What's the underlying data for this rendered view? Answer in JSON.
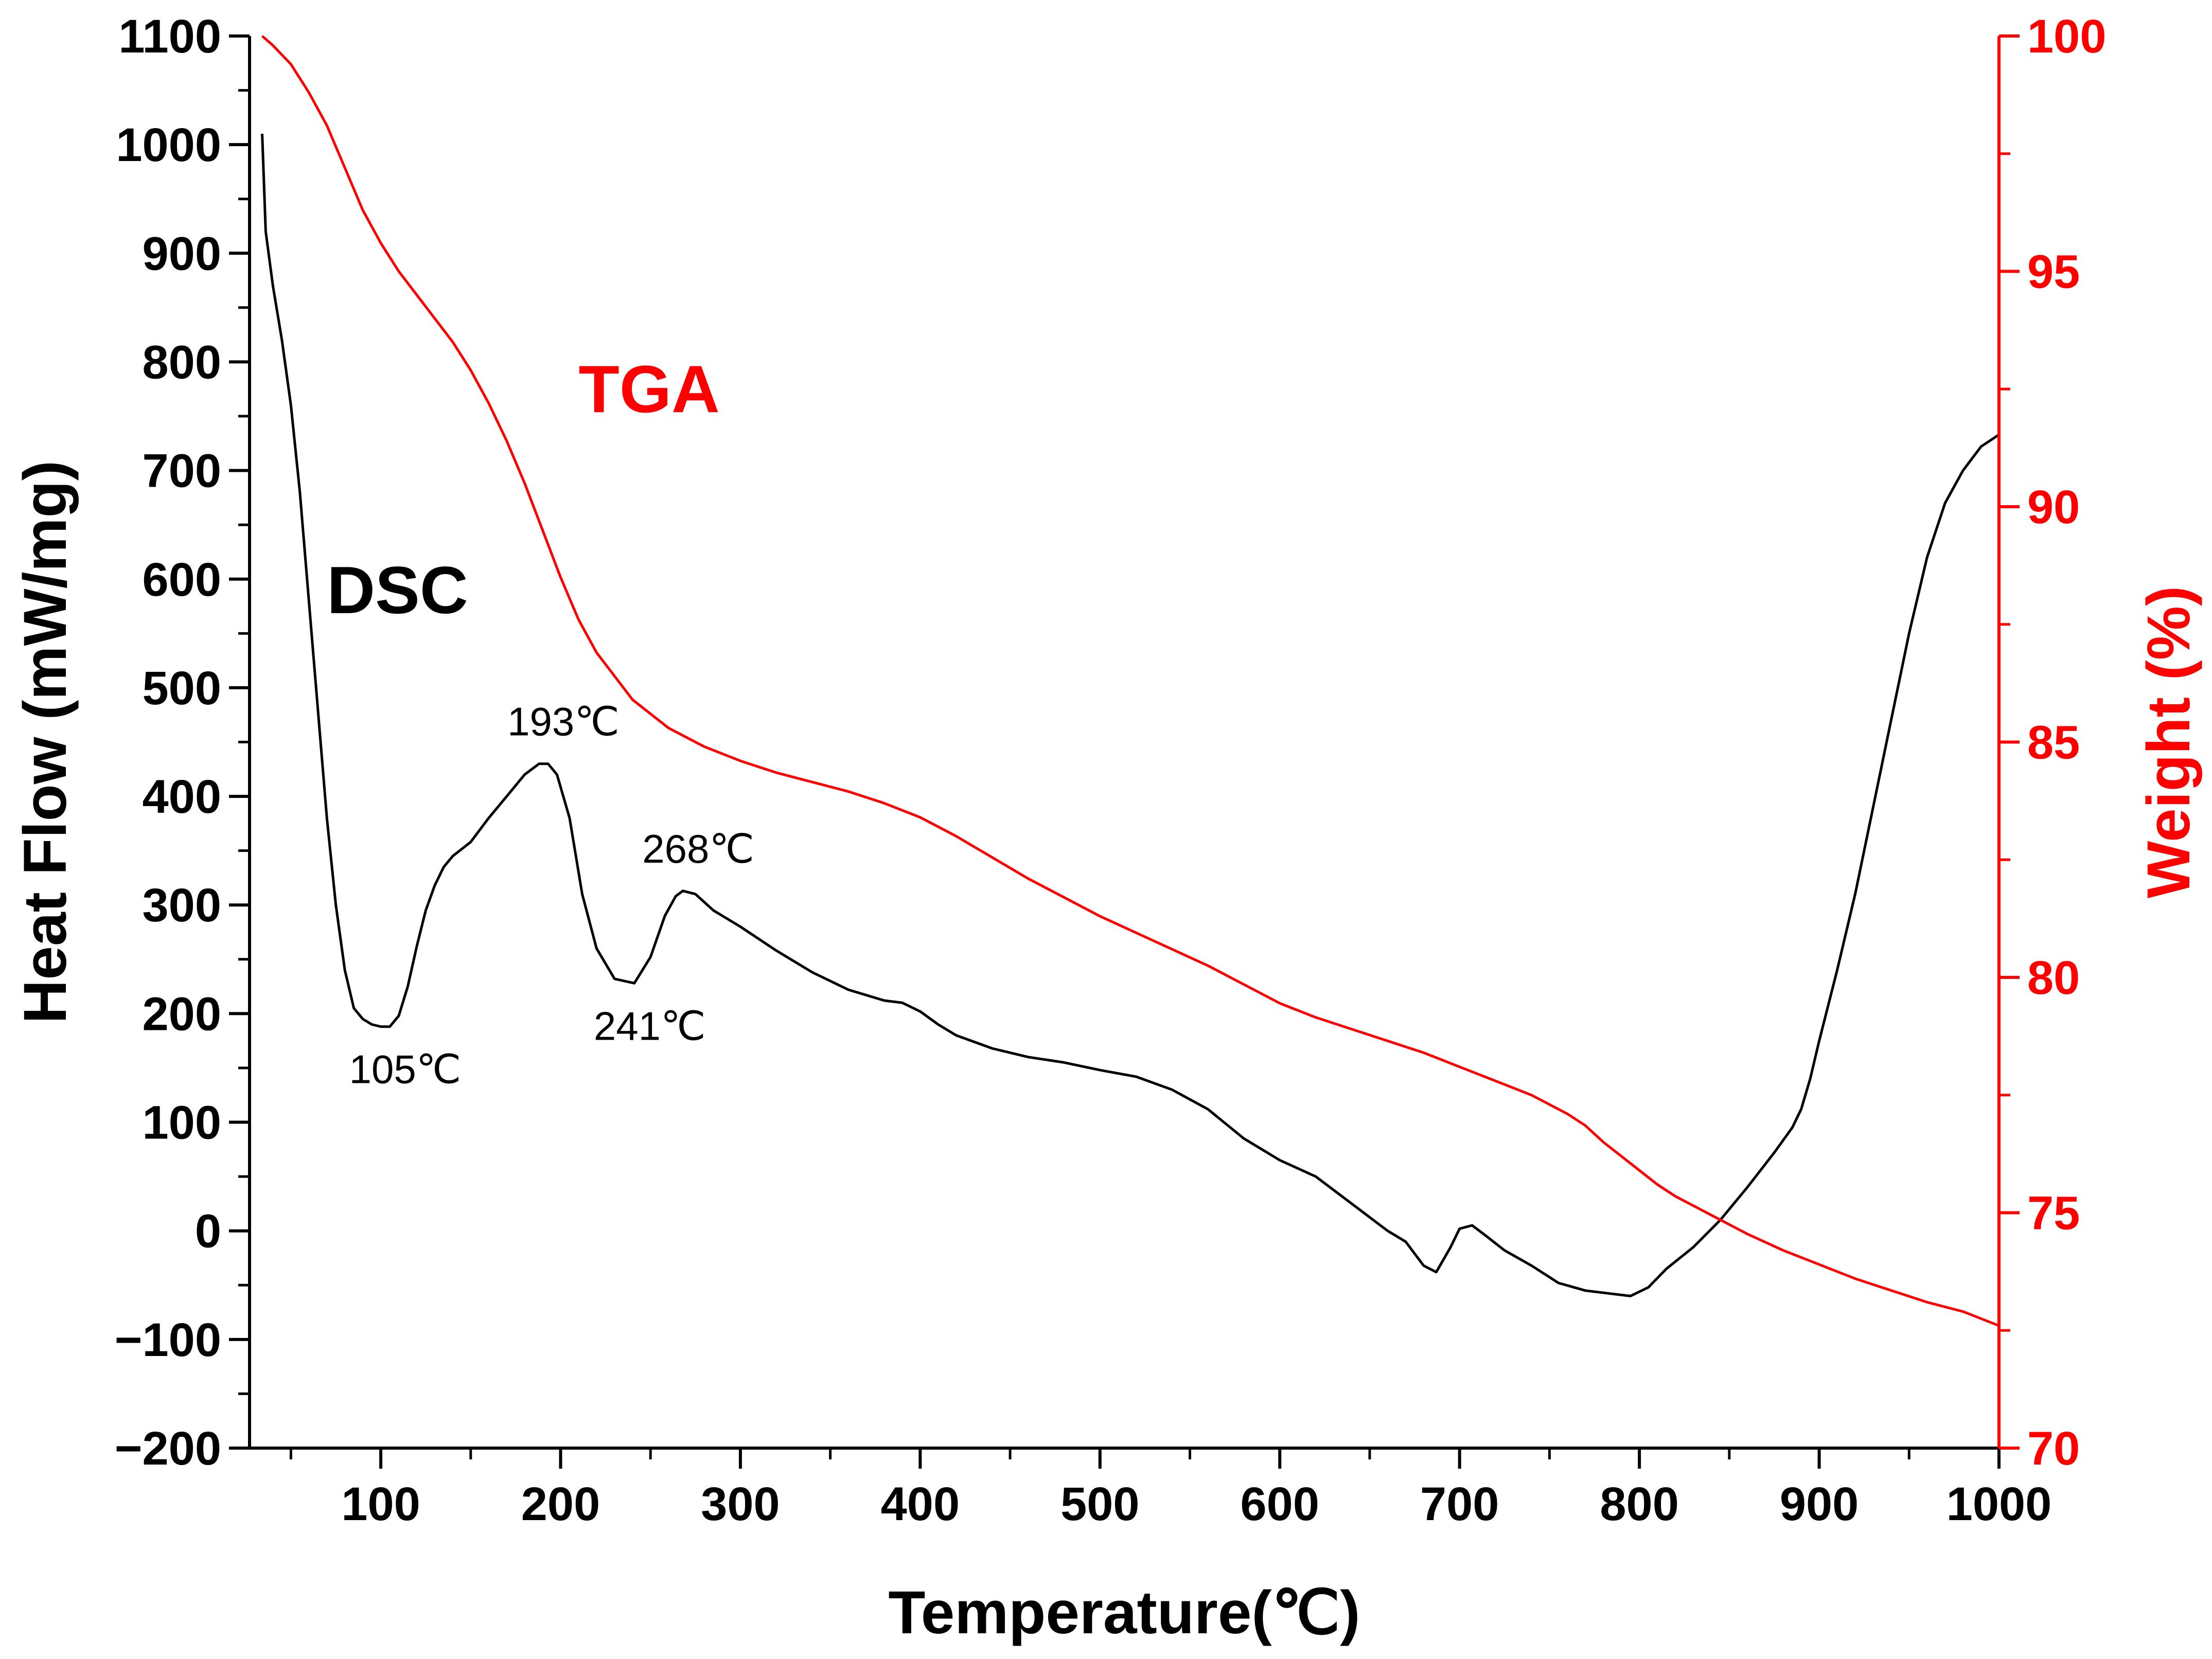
{
  "chart_data": {
    "type": "line",
    "title": "",
    "xlabel": "Temperature(℃)",
    "ylabel_left": "Heat Flow (mW/mg)",
    "ylabel_right": "Weight (%)",
    "xlim": [
      27,
      1000
    ],
    "ylim_left": [
      -200,
      1100
    ],
    "ylim_right": [
      70,
      100
    ],
    "x_ticks": [
      100,
      200,
      300,
      400,
      500,
      600,
      700,
      800,
      900,
      1000
    ],
    "y_left_ticks": [
      -200,
      -100,
      0,
      100,
      200,
      300,
      400,
      500,
      600,
      700,
      800,
      900,
      1000,
      1100
    ],
    "y_right_ticks": [
      70,
      75,
      80,
      85,
      90,
      95,
      100
    ],
    "x_tick_labels": [
      "100",
      "200",
      "300",
      "400",
      "500",
      "600",
      "700",
      "800",
      "900",
      "1000"
    ],
    "y_left_tick_labels": [
      "−200",
      "−100",
      "0",
      "100",
      "200",
      "300",
      "400",
      "500",
      "600",
      "700",
      "800",
      "900",
      "1000",
      "1100"
    ],
    "y_right_tick_labels": [
      "70",
      "75",
      "80",
      "85",
      "90",
      "95",
      "100"
    ],
    "grid": false,
    "colors": {
      "dsc": "#000000",
      "tga": "#ff0000"
    },
    "series": [
      {
        "name": "DSC",
        "axis": "left",
        "x": [
          34,
          36,
          40,
          45,
          50,
          55,
          60,
          65,
          70,
          75,
          80,
          85,
          90,
          95,
          100,
          105,
          110,
          115,
          120,
          125,
          130,
          135,
          140,
          150,
          160,
          170,
          180,
          188,
          193,
          198,
          205,
          212,
          220,
          230,
          241,
          250,
          258,
          264,
          268,
          275,
          285,
          300,
          320,
          340,
          360,
          380,
          390,
          400,
          410,
          420,
          440,
          460,
          480,
          500,
          520,
          540,
          560,
          580,
          600,
          620,
          640,
          660,
          670,
          680,
          687,
          695,
          700,
          707,
          715,
          725,
          740,
          755,
          770,
          785,
          795,
          805,
          815,
          830,
          845,
          860,
          875,
          885,
          890,
          895,
          900,
          910,
          920,
          930,
          940,
          950,
          960,
          970,
          980,
          990,
          1000
        ],
        "values": [
          1010,
          920,
          870,
          820,
          760,
          680,
          580,
          480,
          380,
          300,
          240,
          205,
          195,
          190,
          188,
          188,
          198,
          225,
          262,
          295,
          318,
          335,
          345,
          358,
          380,
          400,
          420,
          430,
          430,
          420,
          380,
          310,
          260,
          232,
          228,
          252,
          290,
          308,
          313,
          310,
          295,
          280,
          258,
          238,
          222,
          212,
          210,
          202,
          190,
          180,
          168,
          160,
          155,
          148,
          142,
          130,
          112,
          85,
          65,
          50,
          25,
          0,
          -10,
          -32,
          -38,
          -15,
          2,
          5,
          -5,
          -18,
          -32,
          -48,
          -55,
          -58,
          -60,
          -52,
          -35,
          -15,
          10,
          40,
          72,
          95,
          112,
          140,
          175,
          240,
          310,
          390,
          470,
          550,
          620,
          670,
          700,
          722,
          733
        ]
      },
      {
        "name": "TGA",
        "axis": "right",
        "x": [
          34,
          40,
          50,
          60,
          70,
          80,
          90,
          100,
          110,
          120,
          130,
          140,
          150,
          160,
          170,
          180,
          190,
          200,
          210,
          220,
          230,
          240,
          250,
          260,
          270,
          280,
          300,
          320,
          340,
          360,
          380,
          400,
          420,
          440,
          460,
          480,
          500,
          520,
          540,
          560,
          580,
          600,
          620,
          640,
          660,
          680,
          700,
          720,
          740,
          760,
          770,
          780,
          790,
          800,
          810,
          820,
          840,
          860,
          880,
          900,
          920,
          940,
          960,
          980,
          1000
        ],
        "values": [
          100,
          99.8,
          99.4,
          98.8,
          98.1,
          97.2,
          96.3,
          95.6,
          95.0,
          94.5,
          94.0,
          93.5,
          92.9,
          92.2,
          91.4,
          90.5,
          89.5,
          88.5,
          87.6,
          86.9,
          86.4,
          85.9,
          85.6,
          85.3,
          85.1,
          84.9,
          84.6,
          84.35,
          84.15,
          83.95,
          83.7,
          83.4,
          83.0,
          82.55,
          82.1,
          81.7,
          81.3,
          80.95,
          80.6,
          80.25,
          79.85,
          79.45,
          79.15,
          78.9,
          78.65,
          78.4,
          78.1,
          77.8,
          77.5,
          77.1,
          76.85,
          76.5,
          76.2,
          75.9,
          75.6,
          75.35,
          74.95,
          74.55,
          74.2,
          73.9,
          73.6,
          73.35,
          73.1,
          72.9,
          72.6
        ]
      }
    ],
    "annotations": [
      {
        "text": "105℃",
        "x": 105,
        "y": 188,
        "position": "below"
      },
      {
        "text": "193℃",
        "x": 193,
        "y": 430,
        "position": "above"
      },
      {
        "text": "241℃",
        "x": 241,
        "y": 228,
        "position": "below"
      },
      {
        "text": "268℃",
        "x": 268,
        "y": 313,
        "position": "above"
      }
    ],
    "curve_labels": [
      {
        "text": "DSC",
        "x": 70,
        "y": 590,
        "axis": "left"
      },
      {
        "text": "TGA",
        "x": 210,
        "y": 92.5,
        "axis": "right"
      }
    ]
  }
}
